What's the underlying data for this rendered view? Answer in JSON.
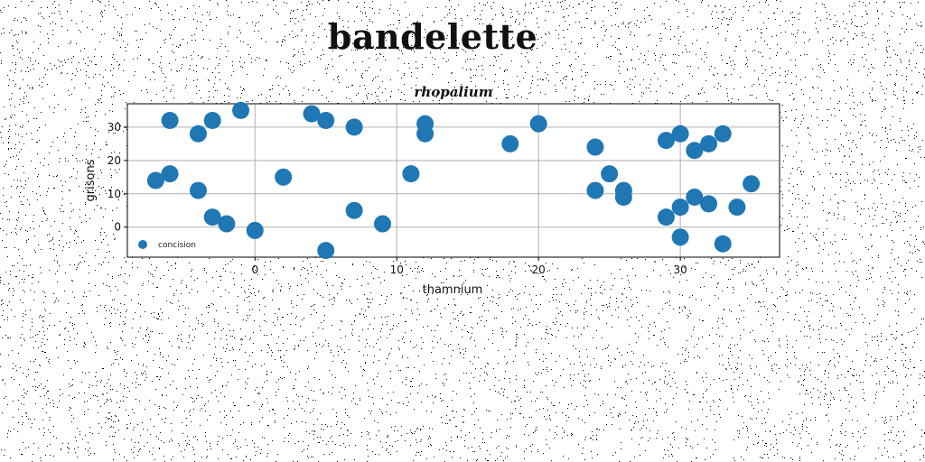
{
  "page": {
    "title": "bandelette"
  },
  "colors": {
    "marker": "#1f77b4",
    "grid": "#b0b0b0",
    "axes": "#000000",
    "noise": "#000000"
  },
  "chart_data": {
    "type": "scatter",
    "title": "rhopalium",
    "xlabel": "thamnium",
    "ylabel": "grisons",
    "xlim": [
      -9,
      37
    ],
    "ylim": [
      -9,
      37
    ],
    "xticks": [
      0,
      10,
      20,
      30
    ],
    "yticks": [
      0,
      10,
      20,
      30
    ],
    "grid": true,
    "legend_position": "lower-left",
    "series": [
      {
        "name": "concision",
        "x": [
          -7,
          -6,
          -6,
          -4,
          -4,
          -3,
          -3,
          -2,
          -1,
          0,
          2,
          4,
          5,
          5,
          7,
          7,
          9,
          11,
          12,
          12,
          18,
          20,
          24,
          24,
          25,
          26,
          26,
          29,
          29,
          30,
          30,
          30,
          31,
          31,
          32,
          32,
          33,
          33,
          34,
          35
        ],
        "y": [
          14,
          16,
          32,
          28,
          11,
          32,
          3,
          1,
          35,
          -1,
          15,
          34,
          32,
          -7,
          30,
          5,
          1,
          16,
          31,
          28,
          25,
          31,
          24,
          11,
          16,
          11,
          9,
          26,
          3,
          28,
          6,
          -3,
          23,
          9,
          25,
          7,
          28,
          -5,
          6,
          13
        ]
      }
    ]
  }
}
